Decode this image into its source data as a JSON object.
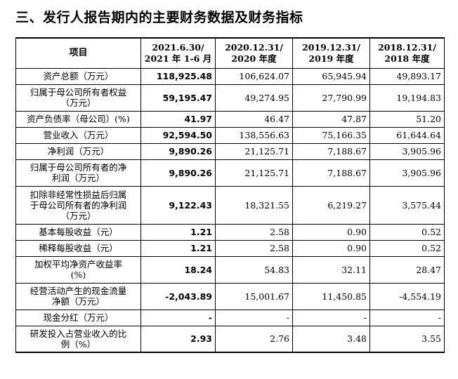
{
  "heading": "三、发行人报告期内的主要财务数据及财务指标",
  "table": {
    "header": {
      "item": "项目",
      "periods": [
        [
          "2021.6.30/",
          "2021 年 1-6 月"
        ],
        [
          "2020.12.31/",
          "2020 年度"
        ],
        [
          "2019.12.31/",
          "2019 年度"
        ],
        [
          "2018.12.31/",
          "2018 年度"
        ]
      ]
    },
    "rows": [
      {
        "label": [
          "资产总额（万元）"
        ],
        "values": [
          "118,925.48",
          "106,624.07",
          "65,945.94",
          "49,893.17"
        ]
      },
      {
        "label": [
          "归属于母公司所有者权益",
          "（万元）"
        ],
        "values": [
          "59,195.47",
          "49,274.95",
          "27,790.99",
          "19,194.83"
        ]
      },
      {
        "label": [
          "资产负债率（母公司）(%)"
        ],
        "values": [
          "41.97",
          "46.47",
          "47.87",
          "51.20"
        ]
      },
      {
        "label": [
          "营业收入（万元）"
        ],
        "values": [
          "92,594.50",
          "138,556.63",
          "75,166.35",
          "61,644.64"
        ]
      },
      {
        "label": [
          "净利润（万元）"
        ],
        "values": [
          "9,890.26",
          "21,125.71",
          "7,188.67",
          "3,905.96"
        ]
      },
      {
        "label": [
          "归属于母公司所有者的净",
          "利润（万元）"
        ],
        "values": [
          "9,890.26",
          "21,125.71",
          "7,188.67",
          "3,905.96"
        ]
      },
      {
        "label": [
          "扣除非经常性损益后归属",
          "于母公司所有者的净利润",
          "（万元）"
        ],
        "values": [
          "9,122.43",
          "18,321.55",
          "6,219.27",
          "3,575.44"
        ]
      },
      {
        "label": [
          "基本每股收益（元）"
        ],
        "values": [
          "1.21",
          "2.58",
          "0.90",
          "0.52"
        ]
      },
      {
        "label": [
          "稀释每股收益（元）"
        ],
        "values": [
          "1.21",
          "2.58",
          "0.90",
          "0.52"
        ]
      },
      {
        "label": [
          "加权平均净资产收益率",
          "(%)"
        ],
        "values": [
          "18.24",
          "54.83",
          "32.11",
          "28.47"
        ]
      },
      {
        "label": [
          "经营活动产生的现金流量",
          "净额（万元）"
        ],
        "values": [
          "-2,043.89",
          "15,001.67",
          "11,450.85",
          "-4,554.19"
        ]
      },
      {
        "label": [
          "现金分红（万元）"
        ],
        "values": [
          "-",
          "-",
          "-",
          "-"
        ]
      },
      {
        "label": [
          "研发投入占营业收入的比",
          "例（%）"
        ],
        "values": [
          "2.93",
          "2.76",
          "3.48",
          "3.55"
        ]
      }
    ]
  }
}
